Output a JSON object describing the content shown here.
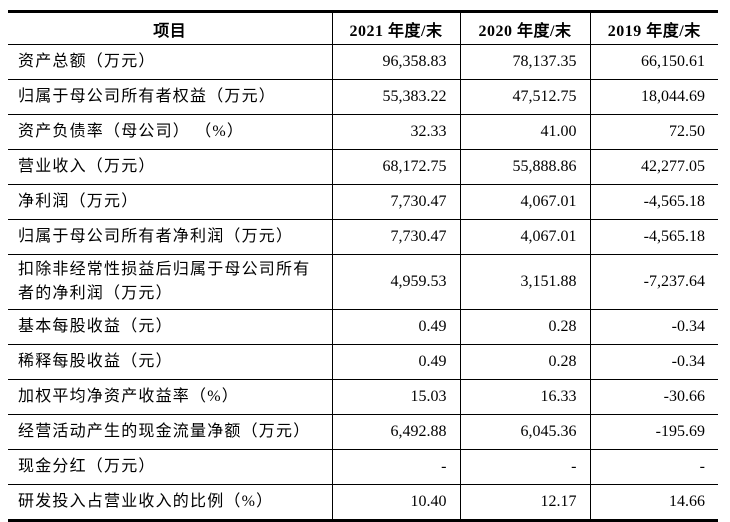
{
  "table": {
    "columns": [
      "项目",
      "2021 年度/末",
      "2020 年度/末",
      "2019 年度/末"
    ],
    "rows": [
      {
        "label": "资产总额（万元）",
        "values": [
          "96,358.83",
          "78,137.35",
          "66,150.61"
        ]
      },
      {
        "label": "归属于母公司所有者权益（万元）",
        "values": [
          "55,383.22",
          "47,512.75",
          "18,044.69"
        ]
      },
      {
        "label": "资产负债率（母公司） （%）",
        "values": [
          "32.33",
          "41.00",
          "72.50"
        ]
      },
      {
        "label": "营业收入（万元）",
        "values": [
          "68,172.75",
          "55,888.86",
          "42,277.05"
        ]
      },
      {
        "label": "净利润（万元）",
        "values": [
          "7,730.47",
          "4,067.01",
          "-4,565.18"
        ]
      },
      {
        "label": "归属于母公司所有者净利润（万元）",
        "values": [
          "7,730.47",
          "4,067.01",
          "-4,565.18"
        ]
      },
      {
        "label": "扣除非经常性损益后归属于母公司所有者的净利润（万元）",
        "values": [
          "4,959.53",
          "3,151.88",
          "-7,237.64"
        ]
      },
      {
        "label": "基本每股收益（元）",
        "values": [
          "0.49",
          "0.28",
          "-0.34"
        ]
      },
      {
        "label": "稀释每股收益（元）",
        "values": [
          "0.49",
          "0.28",
          "-0.34"
        ]
      },
      {
        "label": "加权平均净资产收益率（%）",
        "values": [
          "15.03",
          "16.33",
          "-30.66"
        ]
      },
      {
        "label": "经营活动产生的现金流量净额（万元）",
        "values": [
          "6,492.88",
          "6,045.36",
          "-195.69"
        ]
      },
      {
        "label": "现金分红（万元）",
        "values": [
          "-",
          "-",
          "-"
        ]
      },
      {
        "label": "研发投入占营业收入的比例（%）",
        "values": [
          "10.40",
          "12.17",
          "14.66"
        ]
      }
    ]
  }
}
